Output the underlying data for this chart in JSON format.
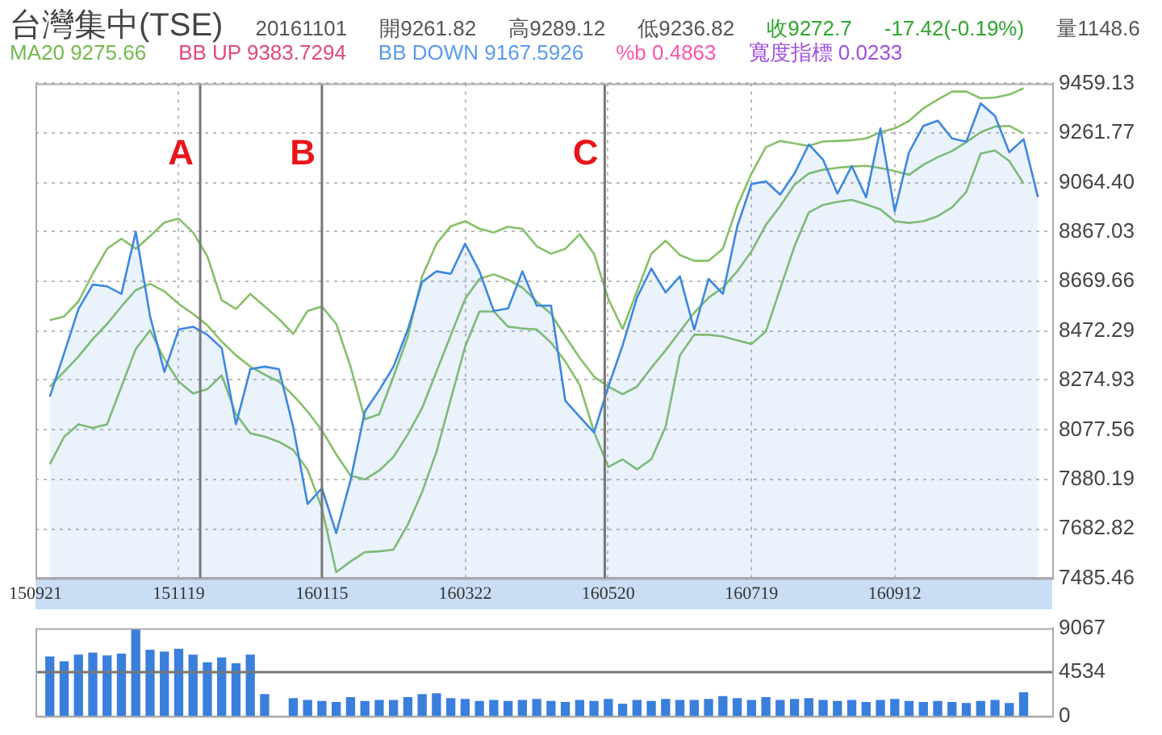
{
  "chart_data": [
    {
      "type": "line",
      "title": "台灣集中(TSE)",
      "annotations": [
        "20161101",
        "開9261.82",
        "高9289.12",
        "低9236.82",
        "收9272.7",
        "-17.42(-0.19%)",
        "量1148.6",
        "MA20 9275.66",
        "BB UP 9383.7294",
        "BB DOWN 9167.5926",
        "%b 0.4863",
        "寬度指標 0.0233",
        {
          "text": "A"
        },
        {
          "text": "B"
        },
        {
          "text": "C"
        }
      ],
      "categories": [
        "150921",
        null,
        null,
        null,
        null,
        null,
        null,
        null,
        null,
        null,
        "151119",
        null,
        null,
        null,
        null,
        null,
        null,
        null,
        null,
        null,
        "160115",
        null,
        null,
        null,
        null,
        null,
        null,
        null,
        null,
        null,
        "160322",
        null,
        null,
        null,
        null,
        null,
        null,
        null,
        null,
        null,
        "160520",
        null,
        null,
        null,
        null,
        null,
        null,
        null,
        null,
        null,
        "160719",
        null,
        null,
        null,
        null,
        null,
        null,
        null,
        null,
        null,
        "160912",
        null,
        null,
        null,
        null,
        null,
        null,
        null,
        null,
        null,
        null,
        null
      ],
      "ylim": [
        7485.46,
        9459.13
      ],
      "yticks": [
        7485.46,
        7682.82,
        7880.19,
        8077.56,
        8274.93,
        8472.29,
        8669.66,
        8867.03,
        {
          "value": 9064.4,
          "label": "9064.40"
        },
        9261.77,
        9459.13
      ],
      "grid": true,
      "legend": false,
      "marker": "none",
      "line_style": "solid",
      "series": [
        {
          "type": "area",
          "color": "#3d87e0",
          "values": [
            null,
            8210,
            8383,
            8560,
            8657,
            8650,
            8620,
            8868,
            8531,
            8309,
            8478,
            8489,
            8457,
            8404,
            8100,
            8320,
            8330,
            8320,
            8088,
            7782,
            7845,
            7666,
            7877,
            8151,
            8236,
            8330,
            8478,
            8668,
            8710,
            8700,
            8820,
            8710,
            8552,
            8562,
            8710,
            8573,
            8573,
            8193,
            8130,
            8067,
            8250,
            8415,
            8605,
            8721,
            8626,
            8690,
            8478,
            8680,
            8620,
            8889,
            9058,
            9069,
            9016,
            9100,
            9216,
            9155,
            9020,
            9130,
            9005,
            9280,
            8950,
            9185,
            9290,
            9311,
            9240,
            9227,
            9380,
            9330,
            9185,
            9237,
            9006,
            null
          ]
        },
        {
          "color": "#86c06a",
          "values": [
            null,
            8515,
            8530,
            8590,
            8700,
            8800,
            8840,
            8800,
            8850,
            8905,
            8920,
            8865,
            8770,
            8595,
            8560,
            8620,
            8570,
            8520,
            8460,
            8552,
            8570,
            8500,
            8330,
            8120,
            8140,
            8290,
            8450,
            8690,
            8820,
            8890,
            8910,
            8880,
            8865,
            8888,
            8879,
            8810,
            8780,
            8800,
            8858,
            8780,
            8600,
            8480,
            8630,
            8780,
            8832,
            8775,
            8752,
            8752,
            8800,
            8970,
            9100,
            9205,
            9230,
            9220,
            9210,
            9228,
            9230,
            9233,
            9240,
            9265,
            9280,
            9310,
            9360,
            9395,
            9427,
            9427,
            9400,
            9403,
            9415,
            9440,
            null,
            null
          ]
        },
        {
          "color": "#86c06a",
          "values": [
            null,
            8250,
            8310,
            8370,
            8440,
            8500,
            8570,
            8635,
            8660,
            8630,
            8580,
            8540,
            8495,
            8430,
            8375,
            8330,
            8298,
            8270,
            8215,
            8151,
            8075,
            7980,
            7895,
            7880,
            7915,
            7970,
            8060,
            8165,
            8310,
            8455,
            8600,
            8680,
            8698,
            8676,
            8645,
            8590,
            8540,
            8450,
            8365,
            8290,
            8250,
            8220,
            8250,
            8325,
            8395,
            8470,
            8545,
            8605,
            8645,
            8710,
            8790,
            8895,
            8970,
            9055,
            9100,
            9115,
            9123,
            9128,
            9131,
            9122,
            9110,
            9095,
            9135,
            9165,
            9190,
            9225,
            9265,
            9287,
            9290,
            9260,
            null,
            null
          ]
        },
        {
          "color": "#86c06a",
          "values": [
            null,
            7940,
            8050,
            8100,
            8085,
            8100,
            8250,
            8400,
            8475,
            8360,
            8270,
            8223,
            8240,
            8295,
            8140,
            8064,
            8051,
            8030,
            7997,
            7919,
            7765,
            7510,
            7553,
            7590,
            7593,
            7600,
            7700,
            7830,
            7990,
            8200,
            8410,
            8550,
            8550,
            8489,
            8482,
            8478,
            8425,
            8350,
            8257,
            8070,
            7930,
            7960,
            7920,
            7960,
            8090,
            8375,
            8457,
            8457,
            8450,
            8435,
            8420,
            8470,
            8640,
            8810,
            8945,
            8975,
            8987,
            8995,
            8977,
            8957,
            8910,
            8903,
            8910,
            8930,
            8965,
            9027,
            9180,
            9192,
            9150,
            9060,
            null,
            null
          ]
        }
      ]
    },
    {
      "type": "bar",
      "color": "#3a7fdc",
      "ylim": [
        0,
        9067
      ],
      "yticks": [
        0,
        4534,
        9067
      ],
      "legend": false,
      "tick_labels": "y",
      "categories": [
        null,
        null,
        null,
        null,
        null,
        null,
        null,
        null,
        null,
        null,
        null,
        null,
        null,
        null,
        null,
        null,
        null,
        null,
        null,
        null,
        null,
        null,
        null,
        null,
        null,
        null,
        null,
        null,
        null,
        null,
        null,
        null,
        null,
        null,
        null,
        null,
        null,
        null,
        null,
        null,
        null,
        null,
        null,
        null,
        null,
        null,
        null,
        null,
        null,
        null,
        null,
        null,
        null,
        null,
        null,
        null,
        null,
        null,
        null,
        null,
        null,
        null,
        null,
        null,
        null,
        null,
        null,
        null,
        null,
        null,
        null,
        null
      ],
      "ref_lines": [
        {
          "axis": "y",
          "value": 4534,
          "color": "#777777"
        }
      ],
      "values": [
        null,
        6100,
        5600,
        6300,
        6500,
        6200,
        6400,
        8900,
        6800,
        6600,
        6900,
        6300,
        5500,
        6000,
        5400,
        6300,
        2200,
        null,
        1800,
        1600,
        1500,
        1400,
        1900,
        1500,
        1600,
        1600,
        1900,
        2200,
        2300,
        1800,
        1700,
        1500,
        1600,
        1500,
        1600,
        1700,
        1500,
        1400,
        1600,
        1500,
        1700,
        1200,
        1600,
        1500,
        1700,
        1600,
        1600,
        1700,
        2000,
        1800,
        1600,
        1900,
        1600,
        1700,
        1800,
        1600,
        1500,
        1600,
        1400,
        1600,
        1700,
        1500,
        1400,
        1500,
        1400,
        1300,
        1500,
        1600,
        1300,
        2400,
        null,
        null
      ]
    }
  ]
}
